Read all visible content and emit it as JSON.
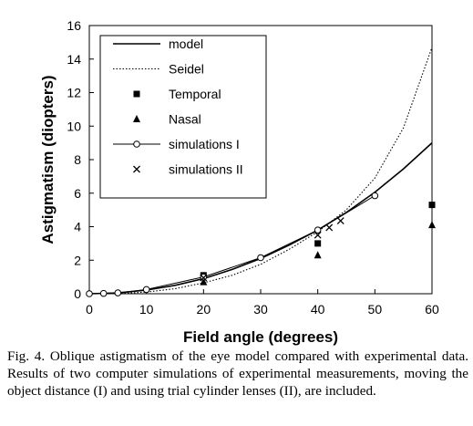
{
  "chart_data": {
    "type": "line",
    "xlabel": "Field angle (degrees)",
    "ylabel": "Astigmatism (diopters)",
    "xlim": [
      0,
      60
    ],
    "ylim": [
      0,
      16
    ],
    "xticks": [
      "0",
      "10",
      "20",
      "30",
      "40",
      "50",
      "60"
    ],
    "yticks": [
      "0",
      "2",
      "4",
      "6",
      "8",
      "10",
      "12",
      "14",
      "16"
    ],
    "grid": false,
    "legend_position": "top-left",
    "series": [
      {
        "name": "model",
        "style": "solid-line",
        "x": [
          0,
          5,
          10,
          15,
          20,
          25,
          30,
          35,
          40,
          45,
          50,
          55,
          60
        ],
        "y": [
          0,
          0.05,
          0.22,
          0.5,
          0.9,
          1.45,
          2.1,
          2.9,
          3.8,
          4.85,
          6.05,
          7.45,
          9.0
        ]
      },
      {
        "name": "Seidel",
        "style": "dotted-line",
        "x": [
          0,
          5,
          10,
          15,
          20,
          25,
          30,
          35,
          40,
          45,
          50,
          55,
          60
        ],
        "y": [
          0,
          0.01,
          0.1,
          0.3,
          0.65,
          1.1,
          1.75,
          2.65,
          3.7,
          5.0,
          6.9,
          9.9,
          14.7
        ]
      },
      {
        "name": "Temporal",
        "style": "square-marker",
        "x": [
          20,
          40,
          60
        ],
        "y": [
          1.1,
          3.0,
          5.3
        ]
      },
      {
        "name": "Nasal",
        "style": "triangle-marker",
        "x": [
          20,
          40,
          60
        ],
        "y": [
          0.7,
          2.3,
          4.1
        ]
      },
      {
        "name": "simulations I",
        "style": "line-open-circle",
        "x": [
          0,
          2.5,
          5,
          10,
          20,
          30,
          40,
          50
        ],
        "y": [
          0,
          0.02,
          0.05,
          0.25,
          1.0,
          2.15,
          3.8,
          5.85
        ]
      },
      {
        "name": "simulations II",
        "style": "cross-marker",
        "x": [
          20,
          40,
          42,
          44
        ],
        "y": [
          0.95,
          3.5,
          3.95,
          4.35
        ]
      }
    ]
  },
  "caption": "Fig. 4.   Oblique astigmatism of the eye model compared with experimental data.   Results of two computer simulations of experimental measurements, moving the object distance (I) and using trial cylinder lenses (II), are included."
}
